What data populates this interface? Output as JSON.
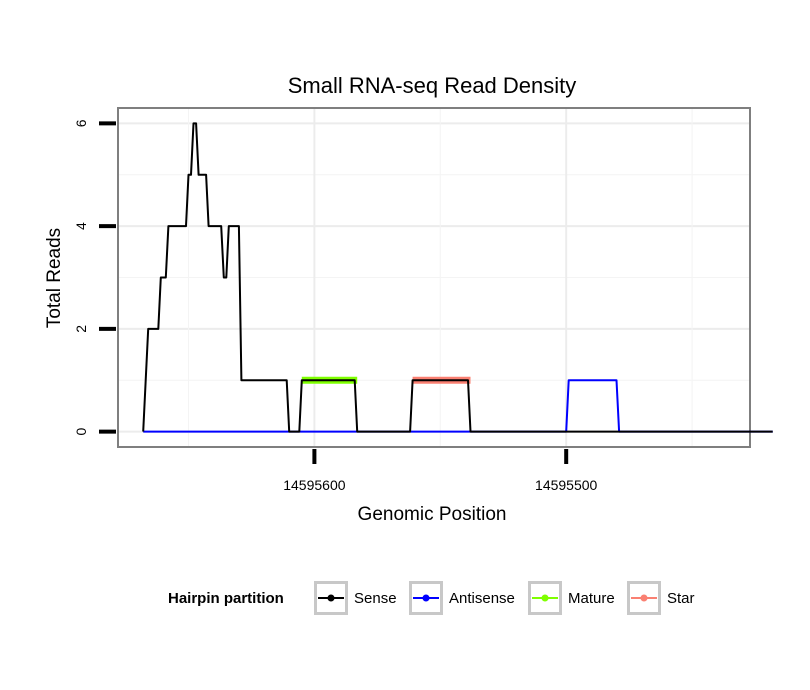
{
  "chart_data": {
    "type": "line",
    "title": "Small RNA-seq Read Density",
    "xlabel": "Genomic Position",
    "ylabel": "Total Reads",
    "x_reversed": true,
    "xlim": [
      14595678,
      14595427
    ],
    "ylim": [
      -0.3,
      6.3
    ],
    "x_ticks": [
      {
        "value": 14595600,
        "label": "14595600"
      },
      {
        "value": 14595500,
        "label": "14595500"
      }
    ],
    "y_ticks": [
      {
        "value": 0,
        "label": "0"
      },
      {
        "value": 2,
        "label": "2"
      },
      {
        "value": 4,
        "label": "4"
      },
      {
        "value": 6,
        "label": "6"
      }
    ],
    "legend": {
      "title": "Hairpin partition",
      "position": "bottom",
      "entries": [
        {
          "name": "Sense",
          "color": "#000000"
        },
        {
          "name": "Antisense",
          "color": "#0000ff"
        },
        {
          "name": "Mature",
          "color": "#7fff00"
        },
        {
          "name": "Star",
          "color": "#fa8072"
        }
      ]
    },
    "series": [
      {
        "name": "Sense",
        "color": "#000000",
        "points": [
          [
            14595668,
            0
          ],
          [
            14595666,
            2
          ],
          [
            14595662,
            2
          ],
          [
            14595661,
            3
          ],
          [
            14595659,
            3
          ],
          [
            14595658,
            4
          ],
          [
            14595651,
            4
          ],
          [
            14595650,
            5
          ],
          [
            14595649,
            5
          ],
          [
            14595648,
            6
          ],
          [
            14595647,
            6
          ],
          [
            14595646,
            5
          ],
          [
            14595643,
            5
          ],
          [
            14595642,
            4
          ],
          [
            14595637,
            4
          ],
          [
            14595636,
            3
          ],
          [
            14595635,
            3
          ],
          [
            14595634,
            4
          ],
          [
            14595630,
            4
          ],
          [
            14595629,
            1
          ],
          [
            14595611,
            1
          ],
          [
            14595610,
            0
          ],
          [
            14595606,
            0
          ],
          [
            14595605,
            1
          ],
          [
            14595584,
            1
          ],
          [
            14595583,
            0
          ],
          [
            14595562,
            0
          ],
          [
            14595561,
            1
          ],
          [
            14595539,
            1
          ],
          [
            14595538,
            0
          ],
          [
            14595418,
            0
          ]
        ]
      },
      {
        "name": "Antisense",
        "color": "#0000ff",
        "points": [
          [
            14595668,
            0
          ],
          [
            14595500,
            0
          ],
          [
            14595499,
            1
          ],
          [
            14595480,
            1
          ],
          [
            14595479,
            0
          ],
          [
            14595418,
            0
          ]
        ]
      },
      {
        "name": "Mature",
        "color": "#7fff00",
        "points": [
          [
            14595605,
            1
          ],
          [
            14595583,
            1
          ]
        ]
      },
      {
        "name": "Star",
        "color": "#fa8072",
        "points": [
          [
            14595561,
            1
          ],
          [
            14595538,
            1
          ]
        ]
      }
    ]
  }
}
